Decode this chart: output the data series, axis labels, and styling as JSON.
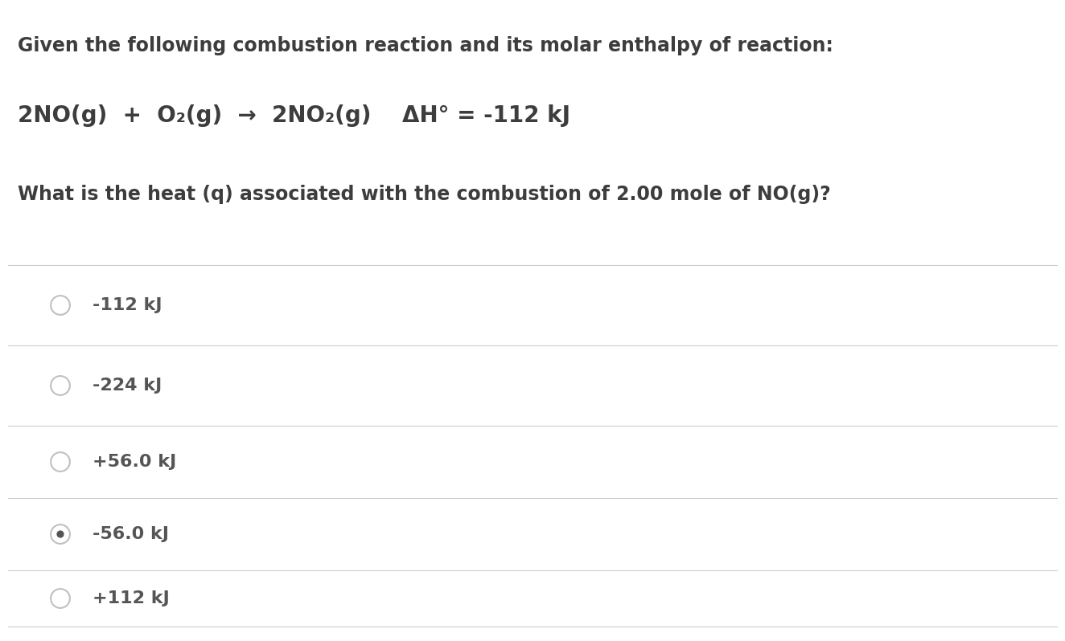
{
  "background_color": "#ffffff",
  "text_color": "#3d3d3d",
  "option_text_color": "#555555",
  "line_color": "#cccccc",
  "radio_color": "#c0c0c0",
  "dot_color": "#555555",
  "title": "Given the following combustion reaction and its molar enthalpy of reaction:",
  "reaction": "2NO(g)  +  O₂(g)  →  2NO₂(g)    ΔH° = -112 kJ",
  "question": "What is the heat (q) associated with the combustion of 2.00 mole of NO(g)?",
  "options": [
    "-112 kJ",
    "-224 kJ",
    "+56.0 kJ",
    "-56.0 kJ",
    "+112 kJ"
  ],
  "selected_index": 3,
  "figsize": [
    13.24,
    7.98
  ],
  "dpi": 100
}
